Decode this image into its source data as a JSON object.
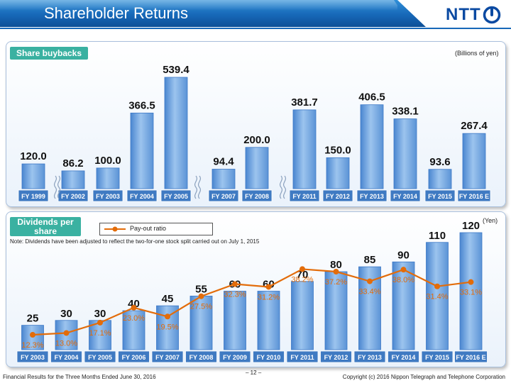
{
  "header": {
    "title": "Shareholder Returns",
    "logo_text": "NTT"
  },
  "colors": {
    "bar": "#6ea4df",
    "bar_dark": "#3c78c6",
    "line": "#e36c0a",
    "label_orange": "#e36c0a",
    "axis_box": "#3f7ac2",
    "tag": "#3ab1a1",
    "header": "#1768b8"
  },
  "chart_data": [
    {
      "type": "bar",
      "title": "Share buybacks",
      "unit": "(Billions of yen)",
      "categories": [
        "FY 1999",
        "FY 2002",
        "FY 2003",
        "FY 2004",
        "FY 2005",
        "FY 2007",
        "FY 2008",
        "FY 2011",
        "FY 2012",
        "FY 2013",
        "FY 2014",
        "FY 2015",
        "FY 2016 E"
      ],
      "values": [
        120.0,
        86.2,
        100.0,
        366.5,
        539.4,
        94.4,
        200.0,
        381.7,
        150.0,
        406.5,
        338.1,
        93.6,
        267.4
      ],
      "value_labels": [
        "120.0",
        "86.2",
        "100.0",
        "366.5",
        "539.4",
        "94.4",
        "200.0",
        "381.7",
        "150.0",
        "406.5",
        "338.1",
        "93.6",
        "267.4"
      ],
      "axis_breaks": [
        "FY 1999|FY 2002",
        "FY 2005|FY 2007",
        "FY 2008|FY 2011"
      ]
    },
    {
      "type": "bar",
      "title": "Dividends per share",
      "unit": "(Yen)",
      "note": "Note: Dividends have been adjusted to reflect the two-for-one stock split carried out on July 1, 2015",
      "categories": [
        "FY 2003",
        "FY 2004",
        "FY 2005",
        "FY 2006",
        "FY 2007",
        "FY 2008",
        "FY 2009",
        "FY 2010",
        "FY 2011",
        "FY 2012",
        "FY 2013",
        "FY 2014",
        "FY 2015",
        "FY 2016 E"
      ],
      "values": [
        25,
        30,
        30,
        40,
        45,
        55,
        60,
        60,
        70,
        80,
        85,
        90,
        110,
        120
      ],
      "series": [
        {
          "name": "Pay-out ratio",
          "type": "line",
          "values": [
            12.3,
            13.0,
            17.1,
            23.0,
            19.5,
            27.5,
            32.3,
            31.2,
            38.2,
            37.2,
            33.4,
            38.0,
            31.4,
            33.1
          ],
          "labels": [
            "12.3%",
            "13.0%",
            "17.1%",
            "23.0%",
            "19.5%",
            "27.5%",
            "32.3%",
            "31.2%",
            "38.2%",
            "37.2%",
            "33.4%",
            "38.0%",
            "31.4%",
            "33.1%"
          ]
        }
      ]
    }
  ],
  "footer": {
    "left": "Financial Results for the Three Months Ended June 30, 2016",
    "page": "– 12 –",
    "right": "Copyright (c) 2016 Nippon Telegraph and Telephone Corporation"
  }
}
